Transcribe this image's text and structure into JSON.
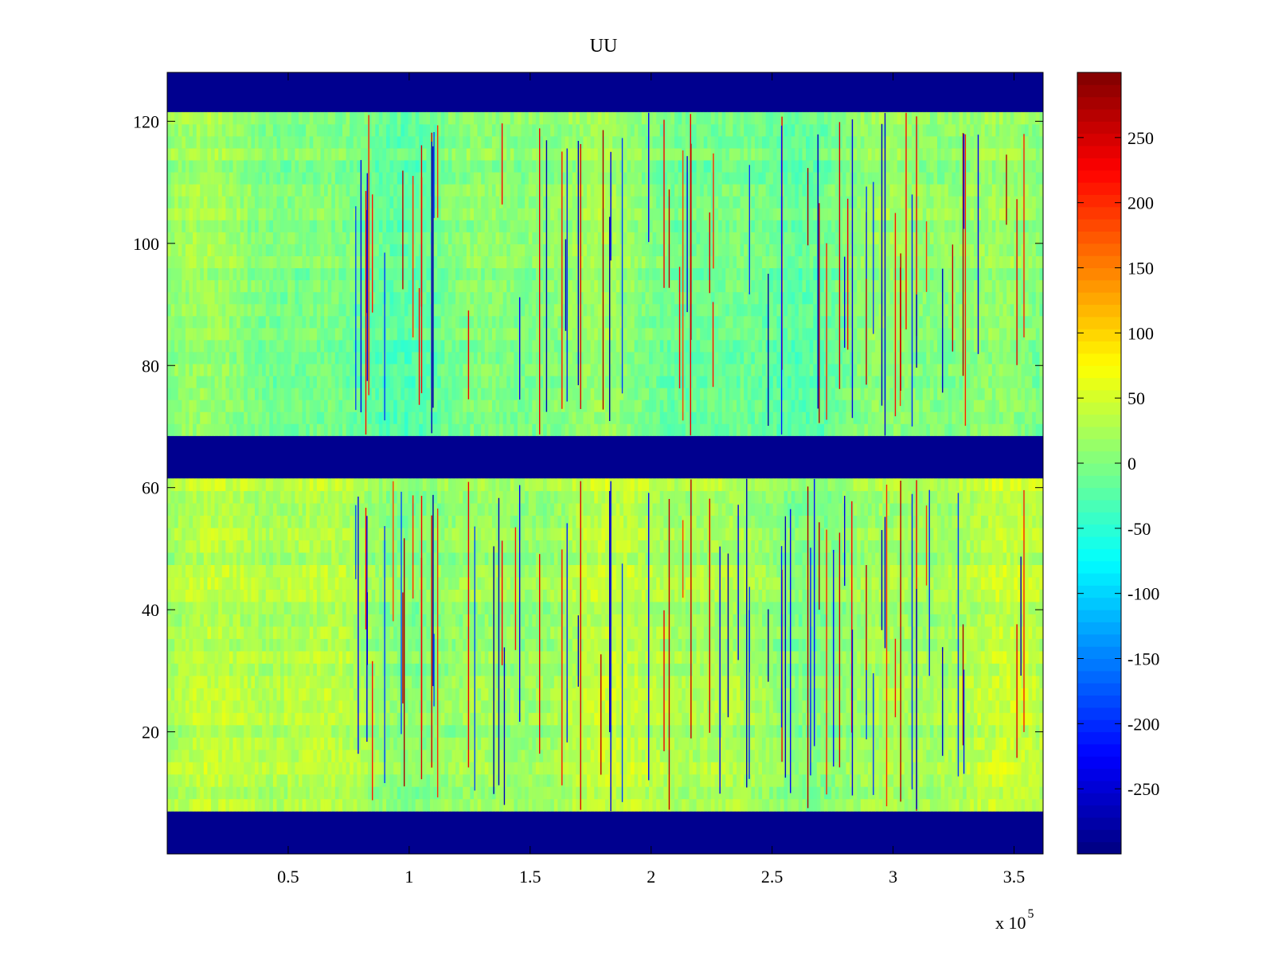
{
  "chart_data": {
    "type": "heatmap",
    "title": "UU",
    "xlabel": "",
    "ylabel": "",
    "x_exponent_label": "x 10",
    "x_exponent_power": "5",
    "xlim": [
      0,
      3.62
    ],
    "ylim": [
      0,
      128
    ],
    "x_ticks": [
      {
        "value": 0.5,
        "label": "0.5"
      },
      {
        "value": 1,
        "label": "1"
      },
      {
        "value": 1.5,
        "label": "1.5"
      },
      {
        "value": 2,
        "label": "2"
      },
      {
        "value": 2.5,
        "label": "2.5"
      },
      {
        "value": 3,
        "label": "3"
      },
      {
        "value": 3.5,
        "label": "3.5"
      }
    ],
    "y_ticks": [
      {
        "value": 20,
        "label": "20"
      },
      {
        "value": 40,
        "label": "40"
      },
      {
        "value": 60,
        "label": "60"
      },
      {
        "value": 80,
        "label": "80"
      },
      {
        "value": 100,
        "label": "100"
      },
      {
        "value": 120,
        "label": "120"
      }
    ],
    "colorbar": {
      "colormap": "jet",
      "range": [
        -300,
        300
      ],
      "ticks": [
        {
          "value": 250,
          "label": "250"
        },
        {
          "value": 200,
          "label": "200"
        },
        {
          "value": 150,
          "label": "150"
        },
        {
          "value": 100,
          "label": "100"
        },
        {
          "value": 50,
          "label": "50"
        },
        {
          "value": 0,
          "label": "0"
        },
        {
          "value": -50,
          "label": "-50"
        },
        {
          "value": -100,
          "label": "-100"
        },
        {
          "value": -150,
          "label": "-150"
        },
        {
          "value": -200,
          "label": "-200"
        },
        {
          "value": -250,
          "label": "-250"
        }
      ]
    },
    "masked_bands_y": [
      [
        0,
        7
      ],
      [
        61.5,
        68.5
      ],
      [
        121.5,
        128
      ]
    ],
    "background_value": -300,
    "data_bands": [
      {
        "y_range": [
          7,
          61.5
        ],
        "typical_range": [
          -20,
          60
        ]
      },
      {
        "y_range": [
          68.5,
          121.5
        ],
        "typical_range": [
          -40,
          40
        ]
      }
    ],
    "colors": {
      "masked": "#00008f",
      "axis": "#000000"
    }
  }
}
